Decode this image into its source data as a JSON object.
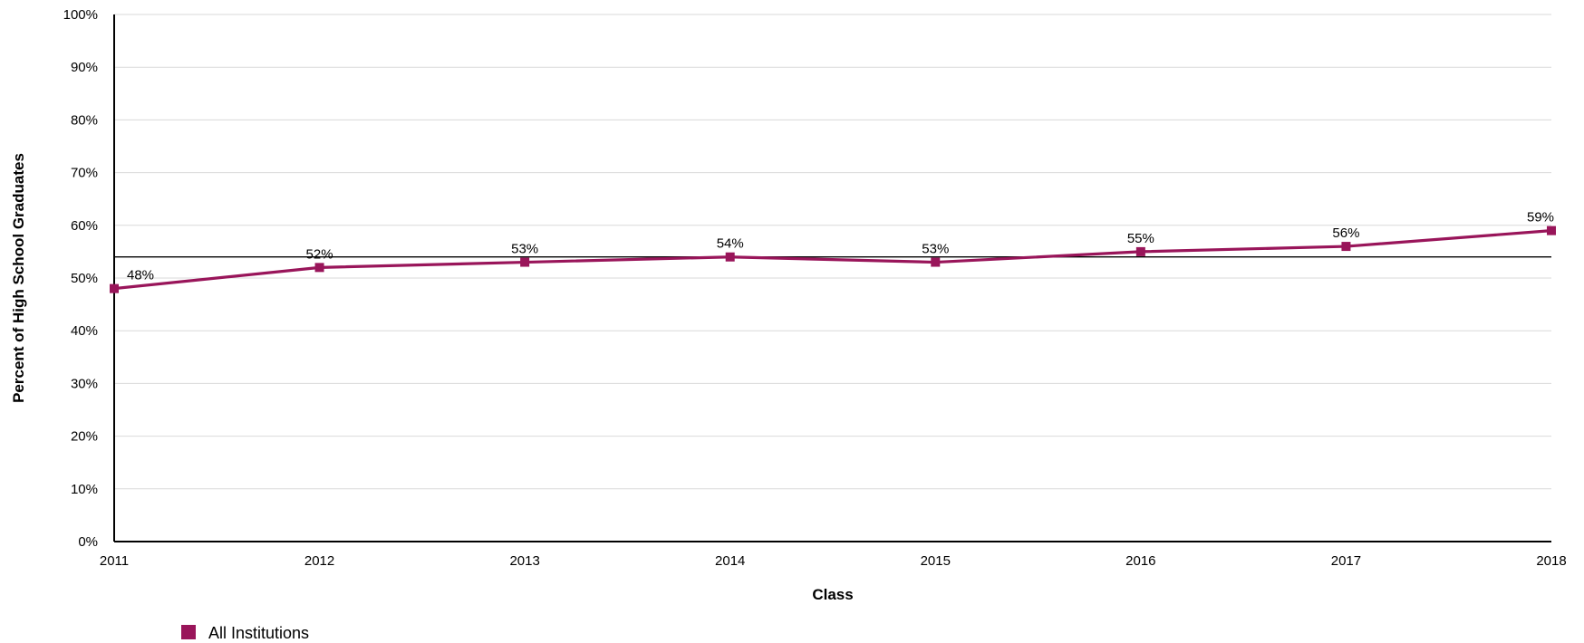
{
  "chart_data": {
    "type": "line",
    "title": "",
    "xlabel": "Class",
    "ylabel": "Percent of High School Graduates",
    "x": [
      "2011",
      "2012",
      "2013",
      "2014",
      "2015",
      "2016",
      "2017",
      "2018"
    ],
    "ylim": [
      0,
      100
    ],
    "yticks": [
      0,
      10,
      20,
      30,
      40,
      50,
      60,
      70,
      80,
      90,
      100
    ],
    "ytick_suffix": "%",
    "grid": true,
    "legend_position": "bottom-left",
    "reference_line": 54,
    "series": [
      {
        "name": "All Institutions",
        "color": "#99155a",
        "values": [
          48,
          52,
          53,
          54,
          53,
          55,
          56,
          59
        ],
        "labels": [
          "48%",
          "52%",
          "53%",
          "54%",
          "53%",
          "55%",
          "56%",
          "59%"
        ]
      }
    ]
  }
}
